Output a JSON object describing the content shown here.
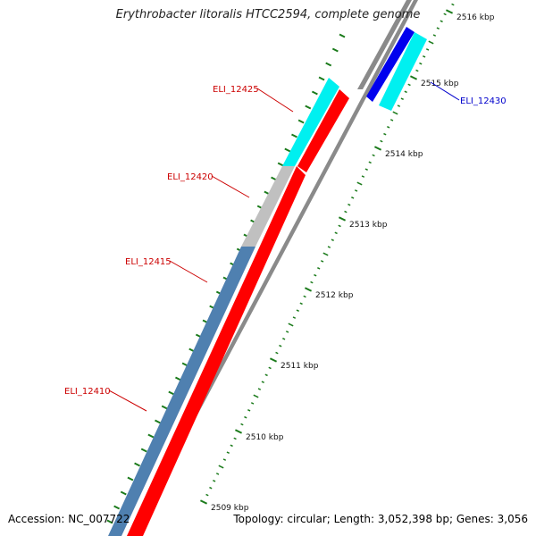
{
  "map": {
    "title": "Erythrobacter litoralis HTCC2594, complete genome",
    "accession": "Accession: NC_007722",
    "summary": "Topology: circular; Length: 3,052,398 bp; Genes: 3,056"
  },
  "colors": {
    "forward_cds": "#ff0000",
    "reverse_cds": "#0000ee",
    "cyan_feature": "#00f0f0",
    "steelblue_feature": "#4f80b0",
    "gray_feature": "#c0c0c0",
    "backbone": "#8a8a8a",
    "tick": "#1a7a1a",
    "label_forward": "#cc0000",
    "label_reverse": "#0000cc"
  },
  "ticks": [
    {
      "label": "2509 kbp"
    },
    {
      "label": "2510 kbp"
    },
    {
      "label": "2511 kbp"
    },
    {
      "label": "2512 kbp"
    },
    {
      "label": "2513 kbp"
    },
    {
      "label": "2514 kbp"
    },
    {
      "label": "2515 kbp"
    },
    {
      "label": "2516 kbp"
    }
  ],
  "genes": [
    {
      "name": "ELI_12410",
      "strand": "forward"
    },
    {
      "name": "ELI_12415",
      "strand": "forward"
    },
    {
      "name": "ELI_12420",
      "strand": "forward"
    },
    {
      "name": "ELI_12425",
      "strand": "forward"
    },
    {
      "name": "ELI_12430",
      "strand": "reverse"
    }
  ]
}
